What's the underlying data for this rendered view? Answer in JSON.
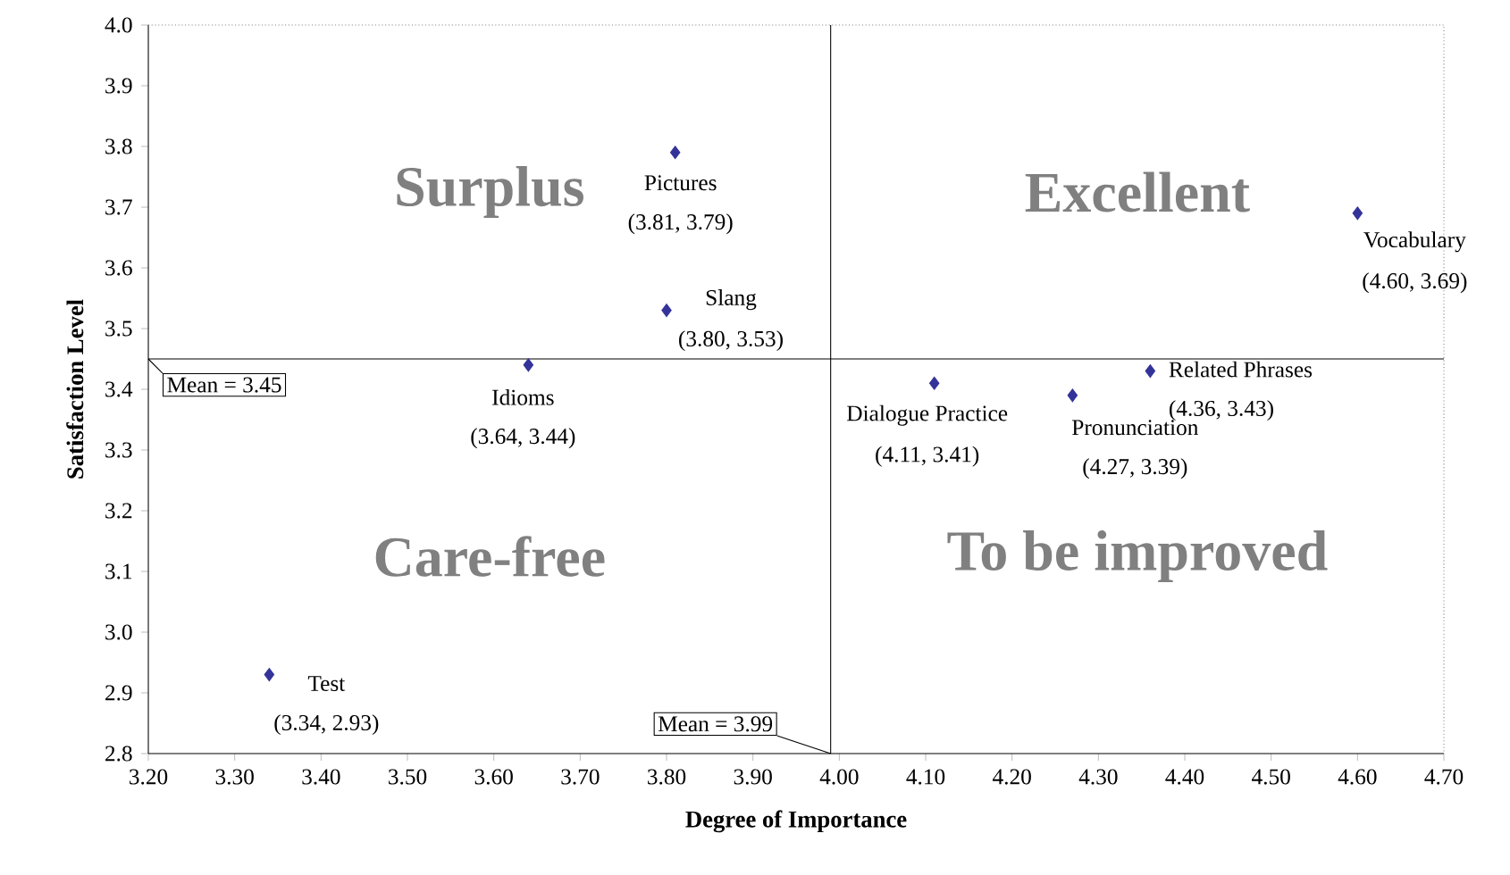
{
  "chart_data": {
    "type": "scatter",
    "xlabel": "Degree of Importance",
    "ylabel": "Satisfaction Level",
    "x": [
      3.34,
      3.64,
      3.8,
      3.81,
      4.11,
      4.27,
      4.36,
      4.6
    ],
    "values": [
      2.93,
      3.44,
      3.53,
      3.79,
      3.41,
      3.39,
      3.43,
      3.69
    ],
    "value_labels": [
      "(3.34, 2.93)",
      "(3.64, 3.44)",
      "(3.80, 3.53)",
      "(3.81, 3.79)",
      "(4.11, 3.41)",
      "(4.27, 3.39)",
      "(4.36, 3.43)",
      "(4.60, 3.69)"
    ],
    "color": "#333399",
    "marker": "diamond",
    "grid": false,
    "xlim": [
      3.2,
      4.7
    ],
    "xticks": [
      {
        "value": 3.2,
        "label": "3.20"
      },
      {
        "value": 3.3,
        "label": "3.30"
      },
      {
        "value": 3.4,
        "label": "3.40"
      },
      {
        "value": 3.5,
        "label": "3.50"
      },
      {
        "value": 3.6,
        "label": "3.60"
      },
      {
        "value": 3.7,
        "label": "3.70"
      },
      {
        "value": 3.8,
        "label": "3.80"
      },
      {
        "value": 3.9,
        "label": "3.90"
      },
      {
        "value": 4.0,
        "label": "4.00"
      },
      {
        "value": 4.1,
        "label": "4.10"
      },
      {
        "value": 4.2,
        "label": "4.20"
      },
      {
        "value": 4.3,
        "label": "4.30"
      },
      {
        "value": 4.4,
        "label": "4.40"
      },
      {
        "value": 4.5,
        "label": "4.50"
      },
      {
        "value": 4.6,
        "label": "4.60"
      },
      {
        "value": 4.7,
        "label": "4.70"
      }
    ],
    "ylim": [
      2.8,
      4.0
    ],
    "yticks": [
      2.8,
      2.9,
      {
        "value": 3.0,
        "label": "3.0"
      },
      3.1,
      3.2,
      3.3,
      3.4,
      3.5,
      3.6,
      3.7,
      3.8,
      3.9,
      {
        "value": 4.0,
        "label": "4.0"
      }
    ],
    "ref_lines": [
      {
        "axis": "y",
        "value": 3.45,
        "label": "Mean = 3.45"
      },
      {
        "axis": "x",
        "value": 3.99,
        "label": "Mean = 3.99"
      }
    ],
    "annotations": [
      "Surplus",
      "Excellent",
      "Care-free",
      "To be improved",
      {
        "text": "Test",
        "x": 3.34,
        "y": 2.93
      },
      {
        "text": "Idioms",
        "x": 3.64,
        "y": 3.44
      },
      {
        "text": "Slang",
        "x": 3.8,
        "y": 3.53
      },
      {
        "text": "Pictures",
        "x": 3.81,
        "y": 3.79
      },
      {
        "text": "Dialogue Practice",
        "x": 4.11,
        "y": 3.41
      },
      {
        "text": "Pronunciation",
        "x": 4.27,
        "y": 3.39
      },
      {
        "text": "Related Phrases",
        "x": 4.36,
        "y": 3.43
      },
      {
        "text": "Vocabulary",
        "x": 4.6,
        "y": 3.69
      }
    ]
  }
}
